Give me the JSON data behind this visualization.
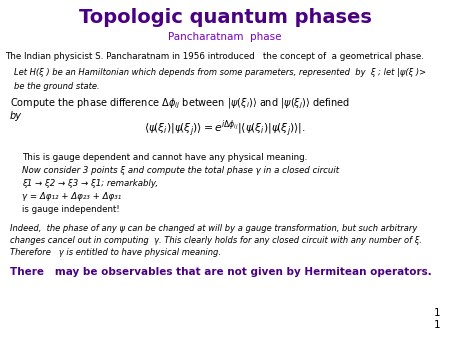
{
  "title": "Topologic quantum phases",
  "subtitle": "Pancharatnam  phase",
  "title_color": "#4B0082",
  "subtitle_color": "#7700CC",
  "bg_color": "#ffffff",
  "line1": "The Indian physicist S. Pancharatnam in 1956 introduced   the concept of  a geometrical phase.",
  "line2_italic": "Let H(ξ ) be an Hamiltonian which depends from some parameters, represented  by  ξ ; let |ψ(ξ )>",
  "line3_italic": "be the ground state.",
  "line5_normal": "This is gauge dependent and cannot have any physical meaning.",
  "line6_italic": "Now consider 3 points ξ and compute the total phase γ in a closed circuit",
  "line7_italic": "ξ1 → ξ2 → ξ3 → ξ1; remarkably,",
  "line8_italic": "γ = Δφ₁₂ + Δφ₂₃ + Δφ₃₁",
  "line9": "is gauge independent!",
  "line10a": "Indeed,  the phase of any ψ can be changed at will by a gauge transformation, but such arbitrary",
  "line10b": "changes cancel out in computing  γ. This clearly holds for any closed circuit with any number of ξ.",
  "line10c": "Therefore   γ is entitled to have physical meaning.",
  "line11": "There   may be observables that are not given by Hermitean operators.",
  "page_num": "1",
  "page_num2": "1"
}
